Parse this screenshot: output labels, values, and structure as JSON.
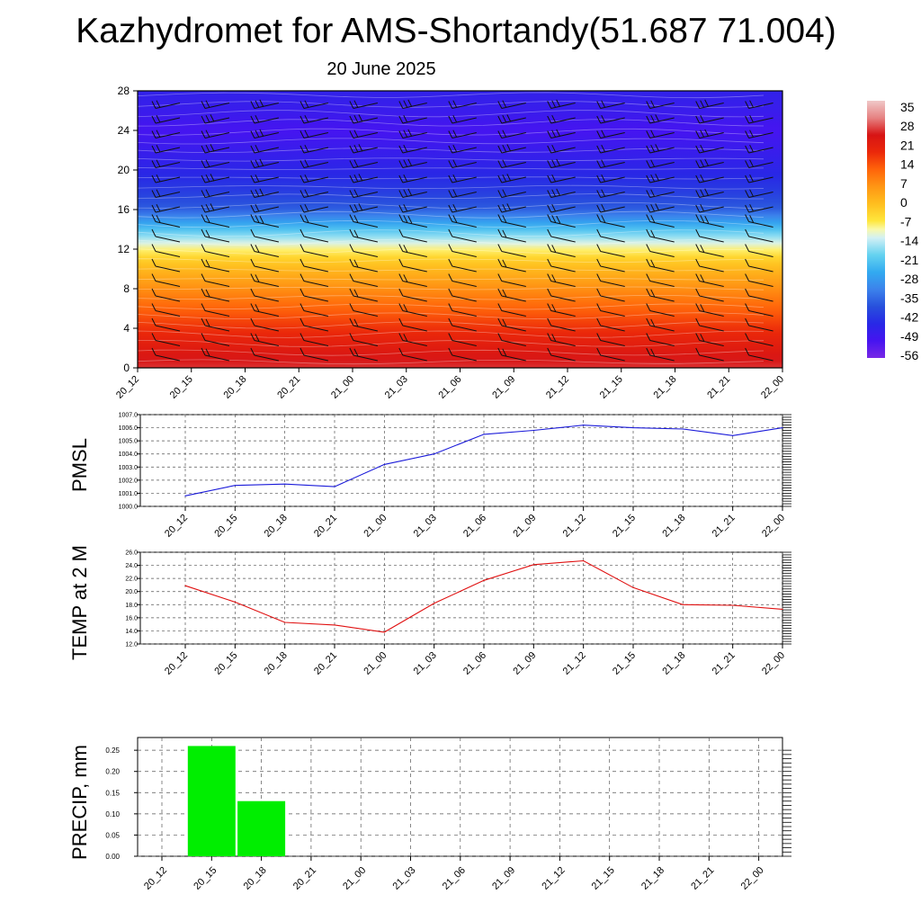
{
  "header": {
    "title": "Kazhydromet for AMS-Shortandy(51.687 71.004)",
    "subtitle": "20 June 2025"
  },
  "colors": {
    "pmsl_line": "#1a1ad9",
    "temp_line": "#e01010",
    "precip_bar": "#00ee00",
    "grid": "#444444"
  },
  "chart_data": [
    {
      "type": "heatmap",
      "name": "vertical-cross-section",
      "x_tick_labels": [
        "20_12",
        "20_15",
        "20_18",
        "20_21",
        "21_00",
        "21_03",
        "21_06",
        "21_09",
        "21_12",
        "21_15",
        "21_18",
        "21_21",
        "22_00"
      ],
      "y_ticks": [
        0,
        4,
        8,
        12,
        16,
        20,
        24,
        28
      ],
      "ylim": [
        0,
        28
      ],
      "colorbar": {
        "labels": [
          "35",
          "28",
          "21",
          "14",
          "7",
          "0",
          "-7",
          "-14",
          "-21",
          "-28",
          "-35",
          "-42",
          "-49",
          "-56"
        ],
        "range": [
          -63,
          42
        ]
      },
      "temperature_profile": {
        "levels": [
          0,
          2,
          4,
          6,
          8,
          10,
          11,
          12,
          13,
          14,
          15,
          16,
          18,
          20,
          22,
          24,
          26,
          28
        ],
        "values": [
          30,
          25,
          20,
          14,
          8,
          1,
          -3,
          -9,
          -16,
          -24,
          -32,
          -40,
          -46,
          -50,
          -53,
          -56,
          -53,
          -51
        ]
      },
      "wind_barbs": true
    },
    {
      "type": "line",
      "name": "PMSL",
      "ylabel": "PMSL",
      "x": [
        "20_12",
        "20_15",
        "20_18",
        "20_21",
        "21_00",
        "21_03",
        "21_06",
        "21_09",
        "21_12",
        "21_15",
        "21_18",
        "21_21",
        "22_00"
      ],
      "values": [
        1000.8,
        1001.6,
        1001.7,
        1001.5,
        1003.2,
        1004.0,
        1005.5,
        1005.8,
        1006.2,
        1006.0,
        1005.9,
        1005.4,
        1006.0
      ],
      "ylim": [
        1000.0,
        1007.0
      ],
      "y_tick_labels": [
        "1000.0",
        "1001.0",
        "1002.0",
        "1003.0",
        "1004.0",
        "1005.0",
        "1006.0",
        "1007.0"
      ],
      "grid": true
    },
    {
      "type": "line",
      "name": "TEMP at 2 M",
      "ylabel": "TEMP at 2 M",
      "x": [
        "20_12",
        "20_15",
        "20_18",
        "20_21",
        "21_00",
        "21_03",
        "21_06",
        "21_09",
        "21_12",
        "21_15",
        "21_18",
        "21_21",
        "22_00"
      ],
      "values": [
        20.9,
        18.4,
        15.3,
        14.9,
        13.8,
        18.2,
        21.7,
        24.1,
        24.7,
        20.6,
        18.0,
        17.9,
        17.3
      ],
      "ylim": [
        12.0,
        26.0
      ],
      "y_tick_labels": [
        "12.0",
        "14.0",
        "16.0",
        "18.0",
        "20.0",
        "22.0",
        "24.0",
        "26.0"
      ],
      "grid": true
    },
    {
      "type": "bar",
      "name": "PRECIP, mm",
      "ylabel": "PRECIP, mm",
      "categories": [
        "20_12",
        "20_15",
        "20_18",
        "20_21",
        "21_00",
        "21_03",
        "21_06",
        "21_09",
        "21_12",
        "21_15",
        "21_18",
        "21_21",
        "22_00"
      ],
      "values": [
        0,
        0.26,
        0.13,
        0,
        0,
        0,
        0,
        0,
        0,
        0,
        0,
        0,
        0
      ],
      "ylim": [
        0,
        0.28
      ],
      "y_tick_labels": [
        "0.00",
        "0.05",
        "0.10",
        "0.15",
        "0.20",
        "0.25"
      ],
      "grid": true
    }
  ]
}
